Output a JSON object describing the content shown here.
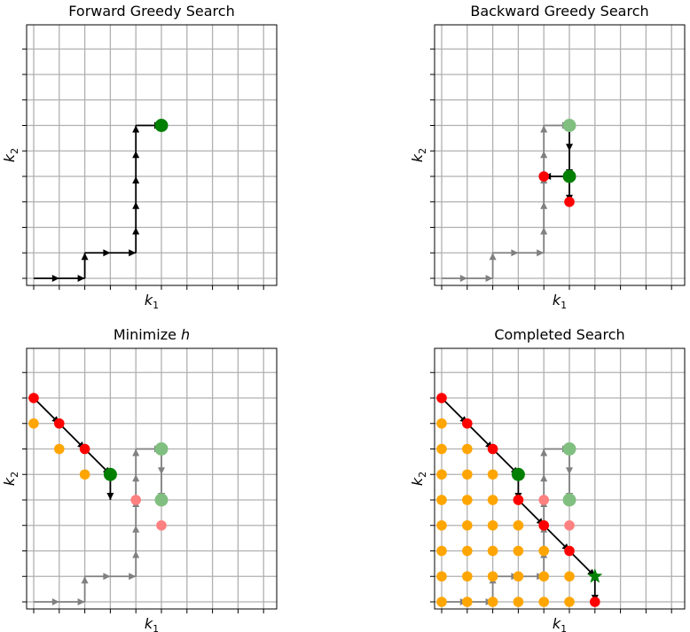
{
  "chart_data": [
    {
      "type": "scatter",
      "title": "Forward Greedy Search",
      "xlabel": "k",
      "xlabel_sub": "1",
      "ylabel": "k",
      "ylabel_sub": "2",
      "xlim": [
        0,
        10
      ],
      "ylim": [
        0,
        10
      ],
      "grid": true,
      "points": [
        {
          "x": 5,
          "y": 6,
          "color": "#007f00",
          "size": "large"
        }
      ],
      "arrows": [
        {
          "from": [
            0,
            0
          ],
          "to": [
            1,
            0
          ],
          "color": "#000000"
        },
        {
          "from": [
            1,
            0
          ],
          "to": [
            2,
            0
          ],
          "color": "#000000"
        },
        {
          "from": [
            2,
            0
          ],
          "to": [
            2,
            1
          ],
          "color": "#000000"
        },
        {
          "from": [
            2,
            1
          ],
          "to": [
            3,
            1
          ],
          "color": "#000000"
        },
        {
          "from": [
            3,
            1
          ],
          "to": [
            4,
            1
          ],
          "color": "#000000"
        },
        {
          "from": [
            4,
            1
          ],
          "to": [
            4,
            2
          ],
          "color": "#000000"
        },
        {
          "from": [
            4,
            2
          ],
          "to": [
            4,
            3
          ],
          "color": "#000000"
        },
        {
          "from": [
            4,
            3
          ],
          "to": [
            4,
            4
          ],
          "color": "#000000"
        },
        {
          "from": [
            4,
            4
          ],
          "to": [
            4,
            5
          ],
          "color": "#000000"
        },
        {
          "from": [
            4,
            5
          ],
          "to": [
            4,
            6
          ],
          "color": "#000000"
        },
        {
          "from": [
            4,
            6
          ],
          "to": [
            5,
            6
          ],
          "color": "#000000"
        }
      ]
    },
    {
      "type": "scatter",
      "title": "Backward Greedy Search",
      "xlabel": "k",
      "xlabel_sub": "1",
      "ylabel": "k",
      "ylabel_sub": "2",
      "xlim": [
        0,
        10
      ],
      "ylim": [
        0,
        10
      ],
      "grid": true,
      "points": [
        {
          "x": 5,
          "y": 6,
          "color": "#80bf80",
          "size": "large"
        },
        {
          "x": 5,
          "y": 4,
          "color": "#007f00",
          "size": "large"
        },
        {
          "x": 4,
          "y": 4,
          "color": "#ff0000",
          "size": "small"
        },
        {
          "x": 5,
          "y": 3,
          "color": "#ff0000",
          "size": "small"
        }
      ],
      "arrows": [
        {
          "from": [
            0,
            0
          ],
          "to": [
            1,
            0
          ],
          "color": "#808080"
        },
        {
          "from": [
            1,
            0
          ],
          "to": [
            2,
            0
          ],
          "color": "#808080"
        },
        {
          "from": [
            2,
            0
          ],
          "to": [
            2,
            1
          ],
          "color": "#808080"
        },
        {
          "from": [
            2,
            1
          ],
          "to": [
            3,
            1
          ],
          "color": "#808080"
        },
        {
          "from": [
            3,
            1
          ],
          "to": [
            4,
            1
          ],
          "color": "#808080"
        },
        {
          "from": [
            4,
            1
          ],
          "to": [
            4,
            2
          ],
          "color": "#808080"
        },
        {
          "from": [
            4,
            2
          ],
          "to": [
            4,
            3
          ],
          "color": "#808080"
        },
        {
          "from": [
            4,
            3
          ],
          "to": [
            4,
            4
          ],
          "color": "#808080"
        },
        {
          "from": [
            4,
            4
          ],
          "to": [
            4,
            5
          ],
          "color": "#808080"
        },
        {
          "from": [
            4,
            5
          ],
          "to": [
            4,
            6
          ],
          "color": "#808080"
        },
        {
          "from": [
            4,
            6
          ],
          "to": [
            5,
            6
          ],
          "color": "#808080"
        },
        {
          "from": [
            5,
            6
          ],
          "to": [
            5,
            5
          ],
          "color": "#000000"
        },
        {
          "from": [
            5,
            5
          ],
          "to": [
            5,
            4
          ],
          "color": "#000000"
        },
        {
          "from": [
            5,
            4
          ],
          "to": [
            4,
            4
          ],
          "color": "#000000"
        },
        {
          "from": [
            5,
            4
          ],
          "to": [
            5,
            3
          ],
          "color": "#000000"
        }
      ]
    },
    {
      "type": "scatter",
      "title": "Minimize h",
      "title_prefix": "Minimize ",
      "title_var": "h",
      "xlabel": "k",
      "xlabel_sub": "1",
      "ylabel": "k",
      "ylabel_sub": "2",
      "xlim": [
        0,
        10
      ],
      "ylim": [
        0,
        10
      ],
      "grid": true,
      "points": [
        {
          "x": 0,
          "y": 8,
          "color": "#ff0000",
          "size": "small"
        },
        {
          "x": 1,
          "y": 7,
          "color": "#ff0000",
          "size": "small"
        },
        {
          "x": 2,
          "y": 6,
          "color": "#ff0000",
          "size": "small"
        },
        {
          "x": 0,
          "y": 7,
          "color": "#ffa500",
          "size": "small"
        },
        {
          "x": 1,
          "y": 6,
          "color": "#ffa500",
          "size": "small"
        },
        {
          "x": 2,
          "y": 5,
          "color": "#ffa500",
          "size": "small"
        },
        {
          "x": 3,
          "y": 5,
          "color": "#007f00",
          "size": "large"
        },
        {
          "x": 5,
          "y": 6,
          "color": "#80bf80",
          "size": "large"
        },
        {
          "x": 5,
          "y": 4,
          "color": "#80bf80",
          "size": "large"
        },
        {
          "x": 4,
          "y": 4,
          "color": "#ff8080",
          "size": "small"
        },
        {
          "x": 5,
          "y": 3,
          "color": "#ff8080",
          "size": "small"
        }
      ],
      "arrows": [
        {
          "from": [
            0,
            0
          ],
          "to": [
            1,
            0
          ],
          "color": "#808080"
        },
        {
          "from": [
            1,
            0
          ],
          "to": [
            2,
            0
          ],
          "color": "#808080"
        },
        {
          "from": [
            2,
            0
          ],
          "to": [
            2,
            1
          ],
          "color": "#808080"
        },
        {
          "from": [
            2,
            1
          ],
          "to": [
            3,
            1
          ],
          "color": "#808080"
        },
        {
          "from": [
            3,
            1
          ],
          "to": [
            4,
            1
          ],
          "color": "#808080"
        },
        {
          "from": [
            4,
            1
          ],
          "to": [
            4,
            2
          ],
          "color": "#808080"
        },
        {
          "from": [
            4,
            2
          ],
          "to": [
            4,
            3
          ],
          "color": "#808080"
        },
        {
          "from": [
            4,
            3
          ],
          "to": [
            4,
            4
          ],
          "color": "#808080"
        },
        {
          "from": [
            4,
            4
          ],
          "to": [
            4,
            5
          ],
          "color": "#808080"
        },
        {
          "from": [
            4,
            5
          ],
          "to": [
            4,
            6
          ],
          "color": "#808080"
        },
        {
          "from": [
            4,
            6
          ],
          "to": [
            5,
            6
          ],
          "color": "#808080"
        },
        {
          "from": [
            5,
            6
          ],
          "to": [
            5,
            5
          ],
          "color": "#808080"
        },
        {
          "from": [
            5,
            5
          ],
          "to": [
            5,
            4
          ],
          "color": "#808080"
        },
        {
          "from": [
            0,
            8
          ],
          "to": [
            1,
            7
          ],
          "color": "#000000"
        },
        {
          "from": [
            1,
            7
          ],
          "to": [
            2,
            6
          ],
          "color": "#000000"
        },
        {
          "from": [
            2,
            6
          ],
          "to": [
            3,
            5
          ],
          "color": "#000000"
        },
        {
          "from": [
            3,
            5
          ],
          "to": [
            3,
            4
          ],
          "color": "#000000"
        }
      ]
    },
    {
      "type": "scatter",
      "title": "Completed Search",
      "xlabel": "k",
      "xlabel_sub": "1",
      "ylabel": "k",
      "ylabel_sub": "2",
      "xlim": [
        0,
        10
      ],
      "ylim": [
        0,
        10
      ],
      "grid": true,
      "points": [
        {
          "x": 0,
          "y": 0,
          "color": "#ffa500",
          "size": "small"
        },
        {
          "x": 1,
          "y": 0,
          "color": "#ffa500",
          "size": "small"
        },
        {
          "x": 2,
          "y": 0,
          "color": "#ffa500",
          "size": "small"
        },
        {
          "x": 3,
          "y": 0,
          "color": "#ffa500",
          "size": "small"
        },
        {
          "x": 4,
          "y": 0,
          "color": "#ffa500",
          "size": "small"
        },
        {
          "x": 5,
          "y": 0,
          "color": "#ffa500",
          "size": "small"
        },
        {
          "x": 0,
          "y": 1,
          "color": "#ffa500",
          "size": "small"
        },
        {
          "x": 1,
          "y": 1,
          "color": "#ffa500",
          "size": "small"
        },
        {
          "x": 2,
          "y": 1,
          "color": "#ffa500",
          "size": "small"
        },
        {
          "x": 3,
          "y": 1,
          "color": "#ffa500",
          "size": "small"
        },
        {
          "x": 4,
          "y": 1,
          "color": "#ffa500",
          "size": "small"
        },
        {
          "x": 5,
          "y": 1,
          "color": "#ffa500",
          "size": "small"
        },
        {
          "x": 0,
          "y": 2,
          "color": "#ffa500",
          "size": "small"
        },
        {
          "x": 1,
          "y": 2,
          "color": "#ffa500",
          "size": "small"
        },
        {
          "x": 2,
          "y": 2,
          "color": "#ffa500",
          "size": "small"
        },
        {
          "x": 3,
          "y": 2,
          "color": "#ffa500",
          "size": "small"
        },
        {
          "x": 4,
          "y": 2,
          "color": "#ffa500",
          "size": "small"
        },
        {
          "x": 0,
          "y": 3,
          "color": "#ffa500",
          "size": "small"
        },
        {
          "x": 1,
          "y": 3,
          "color": "#ffa500",
          "size": "small"
        },
        {
          "x": 2,
          "y": 3,
          "color": "#ffa500",
          "size": "small"
        },
        {
          "x": 3,
          "y": 3,
          "color": "#ffa500",
          "size": "small"
        },
        {
          "x": 4,
          "y": 3,
          "color": "#ffa500",
          "size": "small"
        },
        {
          "x": 0,
          "y": 4,
          "color": "#ffa500",
          "size": "small"
        },
        {
          "x": 1,
          "y": 4,
          "color": "#ffa500",
          "size": "small"
        },
        {
          "x": 2,
          "y": 4,
          "color": "#ffa500",
          "size": "small"
        },
        {
          "x": 3,
          "y": 4,
          "color": "#ffa500",
          "size": "small"
        },
        {
          "x": 0,
          "y": 5,
          "color": "#ffa500",
          "size": "small"
        },
        {
          "x": 1,
          "y": 5,
          "color": "#ffa500",
          "size": "small"
        },
        {
          "x": 2,
          "y": 5,
          "color": "#ffa500",
          "size": "small"
        },
        {
          "x": 0,
          "y": 6,
          "color": "#ffa500",
          "size": "small"
        },
        {
          "x": 1,
          "y": 6,
          "color": "#ffa500",
          "size": "small"
        },
        {
          "x": 0,
          "y": 7,
          "color": "#ffa500",
          "size": "small"
        },
        {
          "x": 0,
          "y": 8,
          "color": "#ff0000",
          "size": "small"
        },
        {
          "x": 1,
          "y": 7,
          "color": "#ff0000",
          "size": "small"
        },
        {
          "x": 2,
          "y": 6,
          "color": "#ff0000",
          "size": "small"
        },
        {
          "x": 3,
          "y": 4,
          "color": "#ff0000",
          "size": "small"
        },
        {
          "x": 4,
          "y": 3,
          "color": "#ff0000",
          "size": "small"
        },
        {
          "x": 5,
          "y": 2,
          "color": "#ff0000",
          "size": "small"
        },
        {
          "x": 6,
          "y": 0,
          "color": "#ff0000",
          "size": "small"
        },
        {
          "x": 4,
          "y": 4,
          "color": "#ff8080",
          "size": "small"
        },
        {
          "x": 5,
          "y": 3,
          "color": "#ff8080",
          "size": "small"
        },
        {
          "x": 3,
          "y": 5,
          "color": "#007f00",
          "size": "large"
        },
        {
          "x": 5,
          "y": 6,
          "color": "#80bf80",
          "size": "large"
        },
        {
          "x": 5,
          "y": 4,
          "color": "#80bf80",
          "size": "large"
        },
        {
          "x": 6,
          "y": 1,
          "color": "#008000",
          "size": "star"
        }
      ],
      "arrows": [
        {
          "from": [
            0,
            0
          ],
          "to": [
            1,
            0
          ],
          "color": "#808080"
        },
        {
          "from": [
            1,
            0
          ],
          "to": [
            2,
            0
          ],
          "color": "#808080"
        },
        {
          "from": [
            2,
            0
          ],
          "to": [
            2,
            1
          ],
          "color": "#808080"
        },
        {
          "from": [
            2,
            1
          ],
          "to": [
            3,
            1
          ],
          "color": "#808080"
        },
        {
          "from": [
            3,
            1
          ],
          "to": [
            4,
            1
          ],
          "color": "#808080"
        },
        {
          "from": [
            4,
            1
          ],
          "to": [
            4,
            2
          ],
          "color": "#808080"
        },
        {
          "from": [
            4,
            2
          ],
          "to": [
            4,
            3
          ],
          "color": "#808080"
        },
        {
          "from": [
            4,
            3
          ],
          "to": [
            4,
            4
          ],
          "color": "#808080"
        },
        {
          "from": [
            4,
            4
          ],
          "to": [
            4,
            5
          ],
          "color": "#808080"
        },
        {
          "from": [
            4,
            5
          ],
          "to": [
            4,
            6
          ],
          "color": "#808080"
        },
        {
          "from": [
            4,
            6
          ],
          "to": [
            5,
            6
          ],
          "color": "#808080"
        },
        {
          "from": [
            5,
            6
          ],
          "to": [
            5,
            5
          ],
          "color": "#808080"
        },
        {
          "from": [
            5,
            5
          ],
          "to": [
            5,
            4
          ],
          "color": "#808080"
        },
        {
          "from": [
            0,
            8
          ],
          "to": [
            1,
            7
          ],
          "color": "#000000"
        },
        {
          "from": [
            1,
            7
          ],
          "to": [
            2,
            6
          ],
          "color": "#000000"
        },
        {
          "from": [
            2,
            6
          ],
          "to": [
            3,
            5
          ],
          "color": "#000000"
        },
        {
          "from": [
            3,
            5
          ],
          "to": [
            3,
            4
          ],
          "color": "#000000"
        },
        {
          "from": [
            3,
            4
          ],
          "to": [
            4,
            3
          ],
          "color": "#000000"
        },
        {
          "from": [
            4,
            3
          ],
          "to": [
            5,
            2
          ],
          "color": "#000000"
        },
        {
          "from": [
            5,
            2
          ],
          "to": [
            6,
            1
          ],
          "color": "#000000"
        },
        {
          "from": [
            6,
            1
          ],
          "to": [
            6,
            0
          ],
          "color": "#000000"
        }
      ]
    }
  ]
}
